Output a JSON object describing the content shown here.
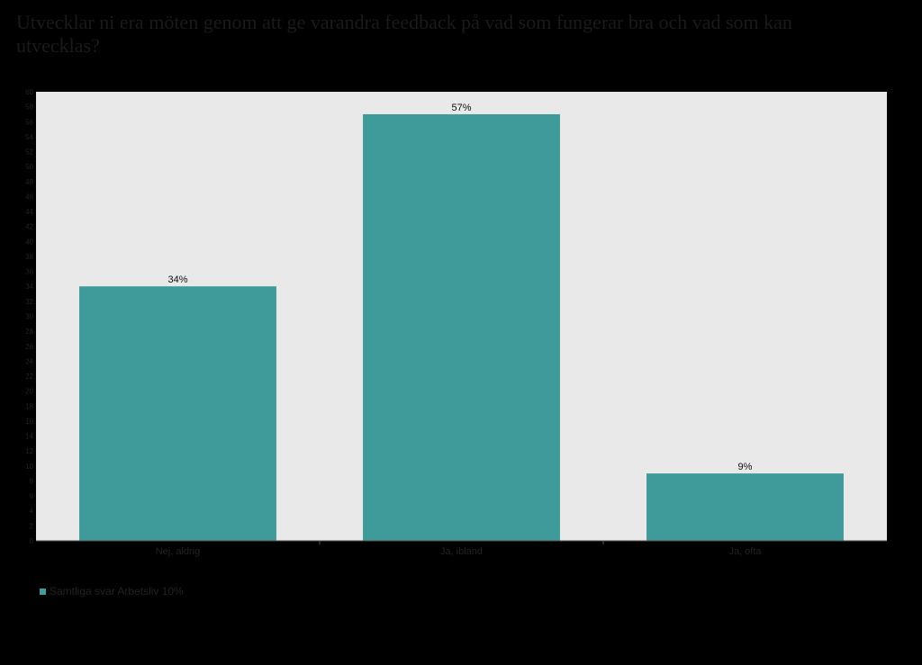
{
  "title": "Utvecklar ni era möten genom att ge varandra feedback på vad som fungerar bra och vad som kan utvecklas?",
  "colors": {
    "bar": "#3f9a9a",
    "plot_background": "#e9e9e9",
    "page_background": "#000000",
    "label_text": "#111111",
    "axis_text": "#222222"
  },
  "chart_data": {
    "type": "bar",
    "title": "Utvecklar ni era möten genom att ge varandra feedback på vad som fungerar bra och vad som kan utvecklas?",
    "categories": [
      "Nej, aldrig",
      "Ja, ibland",
      "Ja, ofta"
    ],
    "series": [
      {
        "name": "Samtliga svar Arbetsliv 10%",
        "values": [
          34,
          57,
          9
        ],
        "labels": [
          "34%",
          "57%",
          "9%"
        ]
      }
    ],
    "xlabel": "",
    "ylabel": "",
    "ylim": [
      0,
      60
    ],
    "ytick_step": 2,
    "grid": false,
    "legend_position": "bottom-left"
  }
}
